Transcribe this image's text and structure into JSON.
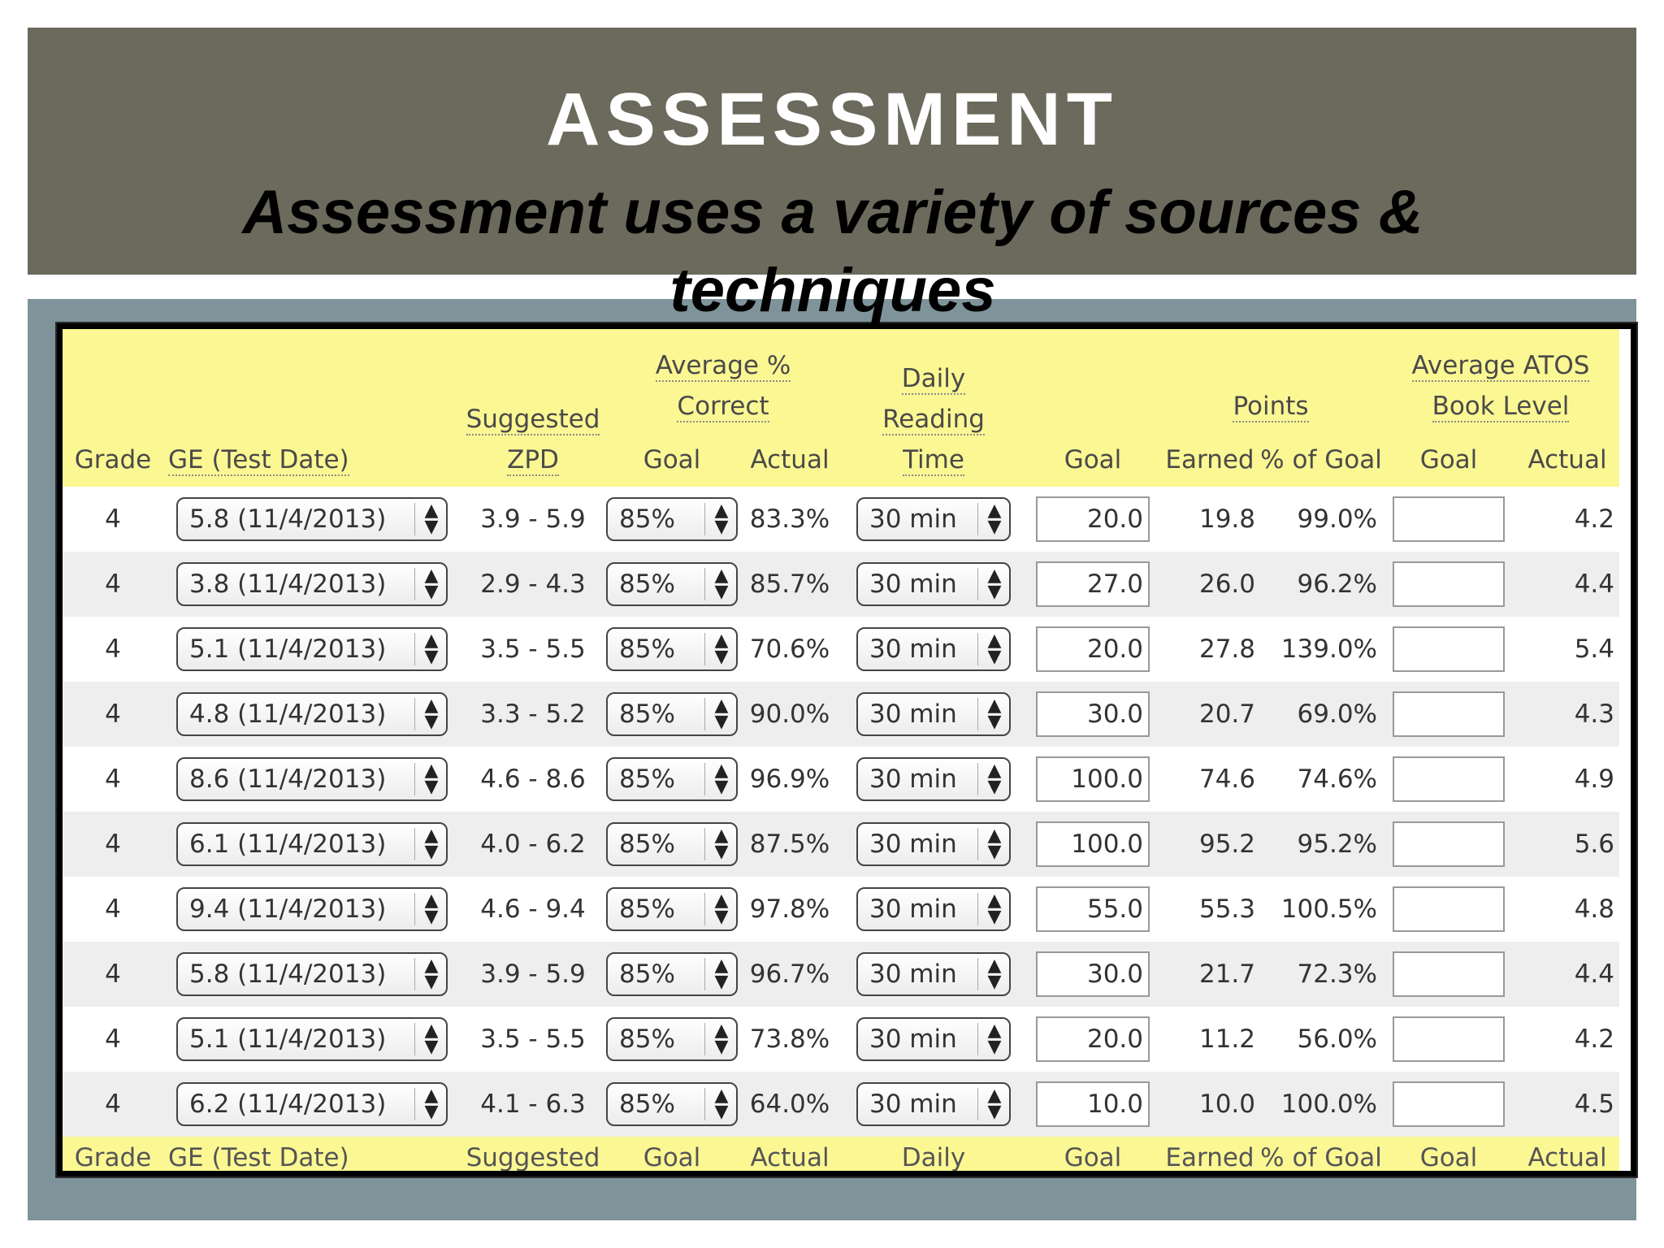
{
  "slide": {
    "title": "ASSESSMENT",
    "subtitle": "Assessment uses a variety of sources & techniques"
  },
  "table": {
    "headers": {
      "grade": "Grade",
      "ge_test_date": "GE (Test Date)",
      "zpd_line1": "Suggested",
      "zpd_line2": "ZPD",
      "avg_correct_line1": "Average %",
      "avg_correct_line2": "Correct",
      "avg_goal": "Goal",
      "avg_actual": "Actual",
      "daily_line1": "Daily",
      "daily_line2": "Reading",
      "daily_line3": "Time",
      "points_goal": "Goal",
      "points_label": "Points",
      "points_earned": "Earned",
      "pct_of_goal": "% of Goal",
      "atos_line1": "Average ATOS",
      "atos_line2": "Book Level",
      "atos_goal": "Goal",
      "atos_actual": "Actual"
    },
    "rows": [
      {
        "grade": "4",
        "ge": "5.8 (11/4/2013)",
        "zpd": "3.9 - 5.9",
        "avg_goal": "85%",
        "avg_actual": "83.3%",
        "time": "30 min",
        "points_goal": "20.0",
        "points_earned": "19.8",
        "pct_goal": "99.0%",
        "atos_goal": "",
        "atos_actual": "4.2"
      },
      {
        "grade": "4",
        "ge": "3.8 (11/4/2013)",
        "zpd": "2.9 - 4.3",
        "avg_goal": "85%",
        "avg_actual": "85.7%",
        "time": "30 min",
        "points_goal": "27.0",
        "points_earned": "26.0",
        "pct_goal": "96.2%",
        "atos_goal": "",
        "atos_actual": "4.4"
      },
      {
        "grade": "4",
        "ge": "5.1 (11/4/2013)",
        "zpd": "3.5 - 5.5",
        "avg_goal": "85%",
        "avg_actual": "70.6%",
        "time": "30 min",
        "points_goal": "20.0",
        "points_earned": "27.8",
        "pct_goal": "139.0%",
        "atos_goal": "",
        "atos_actual": "5.4"
      },
      {
        "grade": "4",
        "ge": "4.8 (11/4/2013)",
        "zpd": "3.3 - 5.2",
        "avg_goal": "85%",
        "avg_actual": "90.0%",
        "time": "30 min",
        "points_goal": "30.0",
        "points_earned": "20.7",
        "pct_goal": "69.0%",
        "atos_goal": "",
        "atos_actual": "4.3"
      },
      {
        "grade": "4",
        "ge": "8.6 (11/4/2013)",
        "zpd": "4.6 - 8.6",
        "avg_goal": "85%",
        "avg_actual": "96.9%",
        "time": "30 min",
        "points_goal": "100.0",
        "points_earned": "74.6",
        "pct_goal": "74.6%",
        "atos_goal": "",
        "atos_actual": "4.9"
      },
      {
        "grade": "4",
        "ge": "6.1 (11/4/2013)",
        "zpd": "4.0 - 6.2",
        "avg_goal": "85%",
        "avg_actual": "87.5%",
        "time": "30 min",
        "points_goal": "100.0",
        "points_earned": "95.2",
        "pct_goal": "95.2%",
        "atos_goal": "",
        "atos_actual": "5.6"
      },
      {
        "grade": "4",
        "ge": "9.4 (11/4/2013)",
        "zpd": "4.6 - 9.4",
        "avg_goal": "85%",
        "avg_actual": "97.8%",
        "time": "30 min",
        "points_goal": "55.0",
        "points_earned": "55.3",
        "pct_goal": "100.5%",
        "atos_goal": "",
        "atos_actual": "4.8"
      },
      {
        "grade": "4",
        "ge": "5.8 (11/4/2013)",
        "zpd": "3.9 - 5.9",
        "avg_goal": "85%",
        "avg_actual": "96.7%",
        "time": "30 min",
        "points_goal": "30.0",
        "points_earned": "21.7",
        "pct_goal": "72.3%",
        "atos_goal": "",
        "atos_actual": "4.4"
      },
      {
        "grade": "4",
        "ge": "5.1 (11/4/2013)",
        "zpd": "3.5 - 5.5",
        "avg_goal": "85%",
        "avg_actual": "73.8%",
        "time": "30 min",
        "points_goal": "20.0",
        "points_earned": "11.2",
        "pct_goal": "56.0%",
        "atos_goal": "",
        "atos_actual": "4.2"
      },
      {
        "grade": "4",
        "ge": "6.2 (11/4/2013)",
        "zpd": "4.1 - 6.3",
        "avg_goal": "85%",
        "avg_actual": "64.0%",
        "time": "30 min",
        "points_goal": "10.0",
        "points_earned": "10.0",
        "pct_goal": "100.0%",
        "atos_goal": "",
        "atos_actual": "4.5"
      }
    ],
    "footer": {
      "grade": "Grade",
      "ge_test_date": "GE (Test Date)",
      "zpd": "Suggested",
      "avg_goal": "Goal",
      "avg_actual": "Actual",
      "daily": "Daily",
      "points_goal": "Goal",
      "points_earned": "Earned",
      "pct_of_goal": "% of Goal",
      "atos_goal": "Goal",
      "atos_actual": "Actual"
    }
  },
  "icons": {
    "select_arrows": "up-down-chevron-icon"
  },
  "colors": {
    "banner": "#6b6a5c",
    "panel": "#7f939b",
    "header_bg": "#fbf793",
    "row_alt": "#eeeeee"
  }
}
